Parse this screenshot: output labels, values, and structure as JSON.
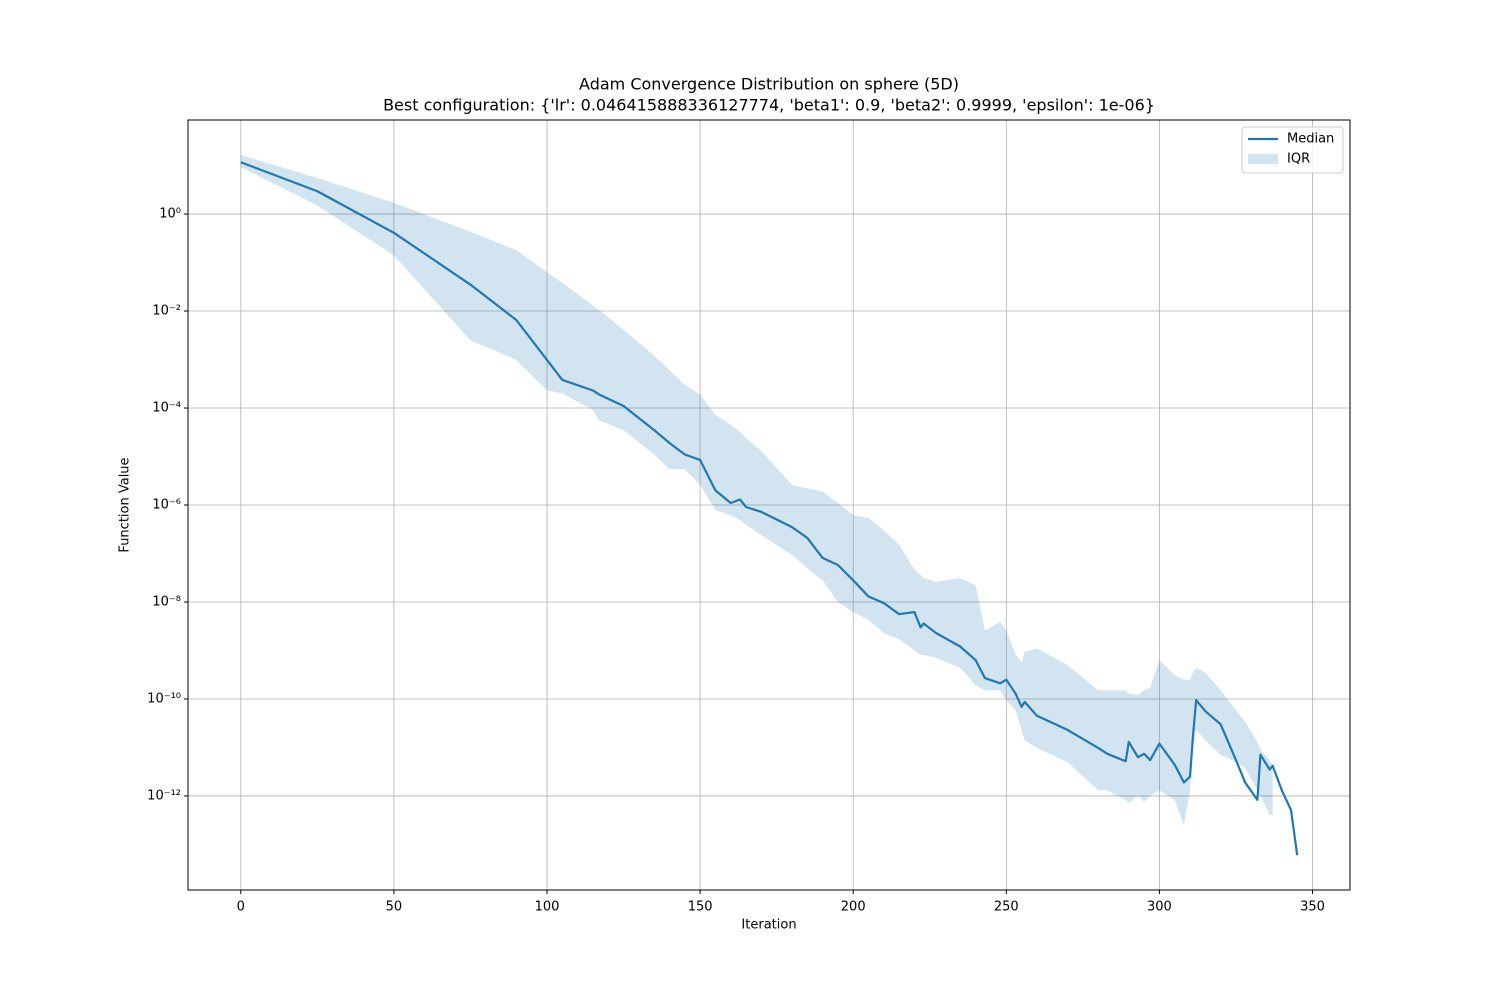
{
  "chart_data": {
    "type": "line",
    "title": "Adam Convergence Distribution on sphere (5D)",
    "subtitle": "Best configuration: {'lr': 0.046415888336127774, 'beta1': 0.9, 'beta2': 0.9999, 'epsilon': 1e-06}",
    "xlabel": "Iteration",
    "ylabel": "Function Value",
    "yscale": "log",
    "grid": true,
    "legend": "upper right",
    "xlim": [
      -17.25,
      362.25
    ],
    "ylim": [
      1.15e-14,
      87
    ],
    "xticks": [
      0,
      50,
      100,
      150,
      200,
      250,
      300,
      350
    ],
    "yticks": [
      {
        "value": 1,
        "label": "10⁰"
      },
      {
        "value": 0.01,
        "label": "10⁻²"
      },
      {
        "value": 0.0001,
        "label": "10⁻⁴"
      },
      {
        "value": 1e-06,
        "label": "10⁻⁶"
      },
      {
        "value": 1e-08,
        "label": "10⁻⁸"
      },
      {
        "value": 1e-10,
        "label": "10⁻¹⁰"
      },
      {
        "value": 1e-12,
        "label": "10⁻¹²"
      }
    ],
    "x": [
      0,
      25,
      50,
      75,
      90,
      100,
      105,
      115,
      117,
      125,
      135,
      140,
      145,
      150,
      155,
      160,
      163,
      165,
      170,
      180,
      185,
      190,
      195,
      200,
      205,
      210,
      215,
      220,
      222,
      223,
      227,
      235,
      240,
      243,
      248,
      250,
      253,
      255,
      256,
      260,
      270,
      280,
      283,
      289,
      290,
      293,
      295,
      297,
      300,
      305,
      308,
      310,
      311,
      312,
      315,
      320,
      325,
      328,
      332,
      333,
      336,
      337,
      340,
      343,
      345
    ],
    "series": [
      {
        "name": "Median",
        "color": "#1f77b4",
        "values": [
          11.7,
          2.95,
          0.41,
          0.035,
          0.0065,
          0.00098,
          0.00038,
          0.00023,
          0.00019,
          0.00011,
          3.5e-05,
          1.9e-05,
          1.1e-05,
          8.5e-06,
          2e-06,
          1.1e-06,
          1.3e-06,
          9.1e-07,
          7.2e-07,
          3.5e-07,
          2.1e-07,
          8.1e-08,
          5.8e-08,
          2.8e-08,
          1.3e-08,
          9.5e-09,
          5.6e-09,
          6.2e-09,
          3e-09,
          3.6e-09,
          2.3e-09,
          1.2e-09,
          6.3e-10,
          2.7e-10,
          2.1e-10,
          2.5e-10,
          1.3e-10,
          6.9e-11,
          8.7e-11,
          4.5e-11,
          2.3e-11,
          9.8e-12,
          7.4e-12,
          5.2e-12,
          1.3e-11,
          6.3e-12,
          7.4e-12,
          5.5e-12,
          1.2e-11,
          4.4e-12,
          1.9e-12,
          2.5e-12,
          1.8e-11,
          9.5e-11,
          5.6e-11,
          3e-11,
          5.5e-12,
          1.9e-12,
          8.3e-13,
          7.1e-12,
          3.5e-12,
          4.2e-12,
          1.3e-12,
          5.1e-13,
          6e-14
        ]
      },
      {
        "name": "IQR",
        "color": "#1f77b4",
        "upper": [
          16.6,
          5.5,
          1.7,
          0.43,
          0.18,
          0.063,
          0.038,
          0.013,
          0.0105,
          0.0041,
          0.0012,
          0.0006,
          0.0003,
          0.00019,
          7.2e-05,
          4.5e-05,
          3.2e-05,
          2.4e-05,
          1.3e-05,
          2.6e-06,
          2.2e-06,
          1.9e-06,
          1.1e-06,
          6.2e-07,
          5.4e-07,
          3e-07,
          1.5e-07,
          4.6e-08,
          3.6e-08,
          3.1e-08,
          2.6e-08,
          3.1e-08,
          2.2e-08,
          2.6e-09,
          3.9e-09,
          2.6e-09,
          8.1e-10,
          5.8e-10,
          9.3e-10,
          1.1e-09,
          5e-10,
          1.5e-10,
          1.5e-10,
          1.5e-10,
          1.3e-10,
          1.2e-10,
          1.5e-10,
          1.7e-10,
          6.3e-10,
          3.1e-10,
          2.5e-10,
          2.5e-10,
          3.6e-10,
          4.4e-10,
          3.5e-10,
          1.5e-10,
          5.9e-11,
          3.4e-11,
          1.3e-11,
          8.9e-12,
          5.5e-12,
          4.4e-12,
          null,
          null,
          null
        ],
        "lower": [
          9.3,
          1.5,
          0.14,
          0.0025,
          0.00098,
          0.00023,
          0.0002,
          9.1e-05,
          5.6e-05,
          3.5e-05,
          1.1e-05,
          5.5e-06,
          5.5e-06,
          2.6e-06,
          7.9e-07,
          6.2e-07,
          4.9e-07,
          3.9e-07,
          2.4e-07,
          9.3e-08,
          5e-08,
          2.8e-08,
          1e-08,
          6.2e-09,
          4.3e-09,
          2.3e-09,
          1.7e-09,
          1e-09,
          8.1e-10,
          8.1e-10,
          7.1e-10,
          4.4e-10,
          1.9e-10,
          1.5e-10,
          1.5e-10,
          9.5e-11,
          5.9e-11,
          2.3e-11,
          1.4e-11,
          9.8e-12,
          5e-12,
          1.3e-12,
          1.3e-12,
          8.3e-13,
          7.2e-13,
          1e-12,
          7.6e-13,
          1e-12,
          1.3e-12,
          8.3e-13,
          2.5e-13,
          1.3e-12,
          1.1e-11,
          2.3e-11,
          1.4e-11,
          7.1e-12,
          5e-12,
          3.8e-12,
          1.3e-12,
          1e-12,
          4.1e-13,
          4.1e-13,
          null,
          null,
          null
        ]
      }
    ]
  }
}
